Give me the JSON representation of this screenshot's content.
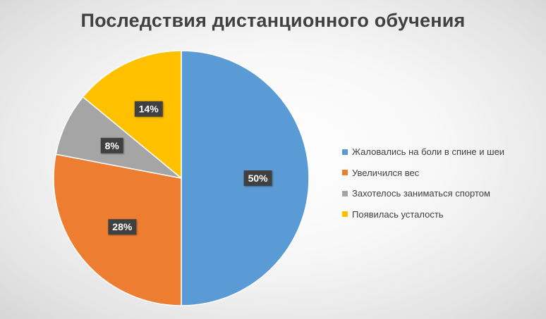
{
  "chart_data": {
    "type": "pie",
    "title": "Последствия дистанционного обучения",
    "series": [
      {
        "name": "Жаловались на боли в спине и шеи",
        "value": 50,
        "label": "50%",
        "color": "#5B9BD5"
      },
      {
        "name": "Увеличился вес",
        "value": 28,
        "label": "28%",
        "color": "#ED7D31"
      },
      {
        "name": "Захотелось заниматься спортом",
        "value": 8,
        "label": "8%",
        "color": "#A5A5A5"
      },
      {
        "name": "Появилась усталость",
        "value": 14,
        "label": "14%",
        "color": "#FFC000"
      }
    ],
    "legend_position": "right"
  }
}
